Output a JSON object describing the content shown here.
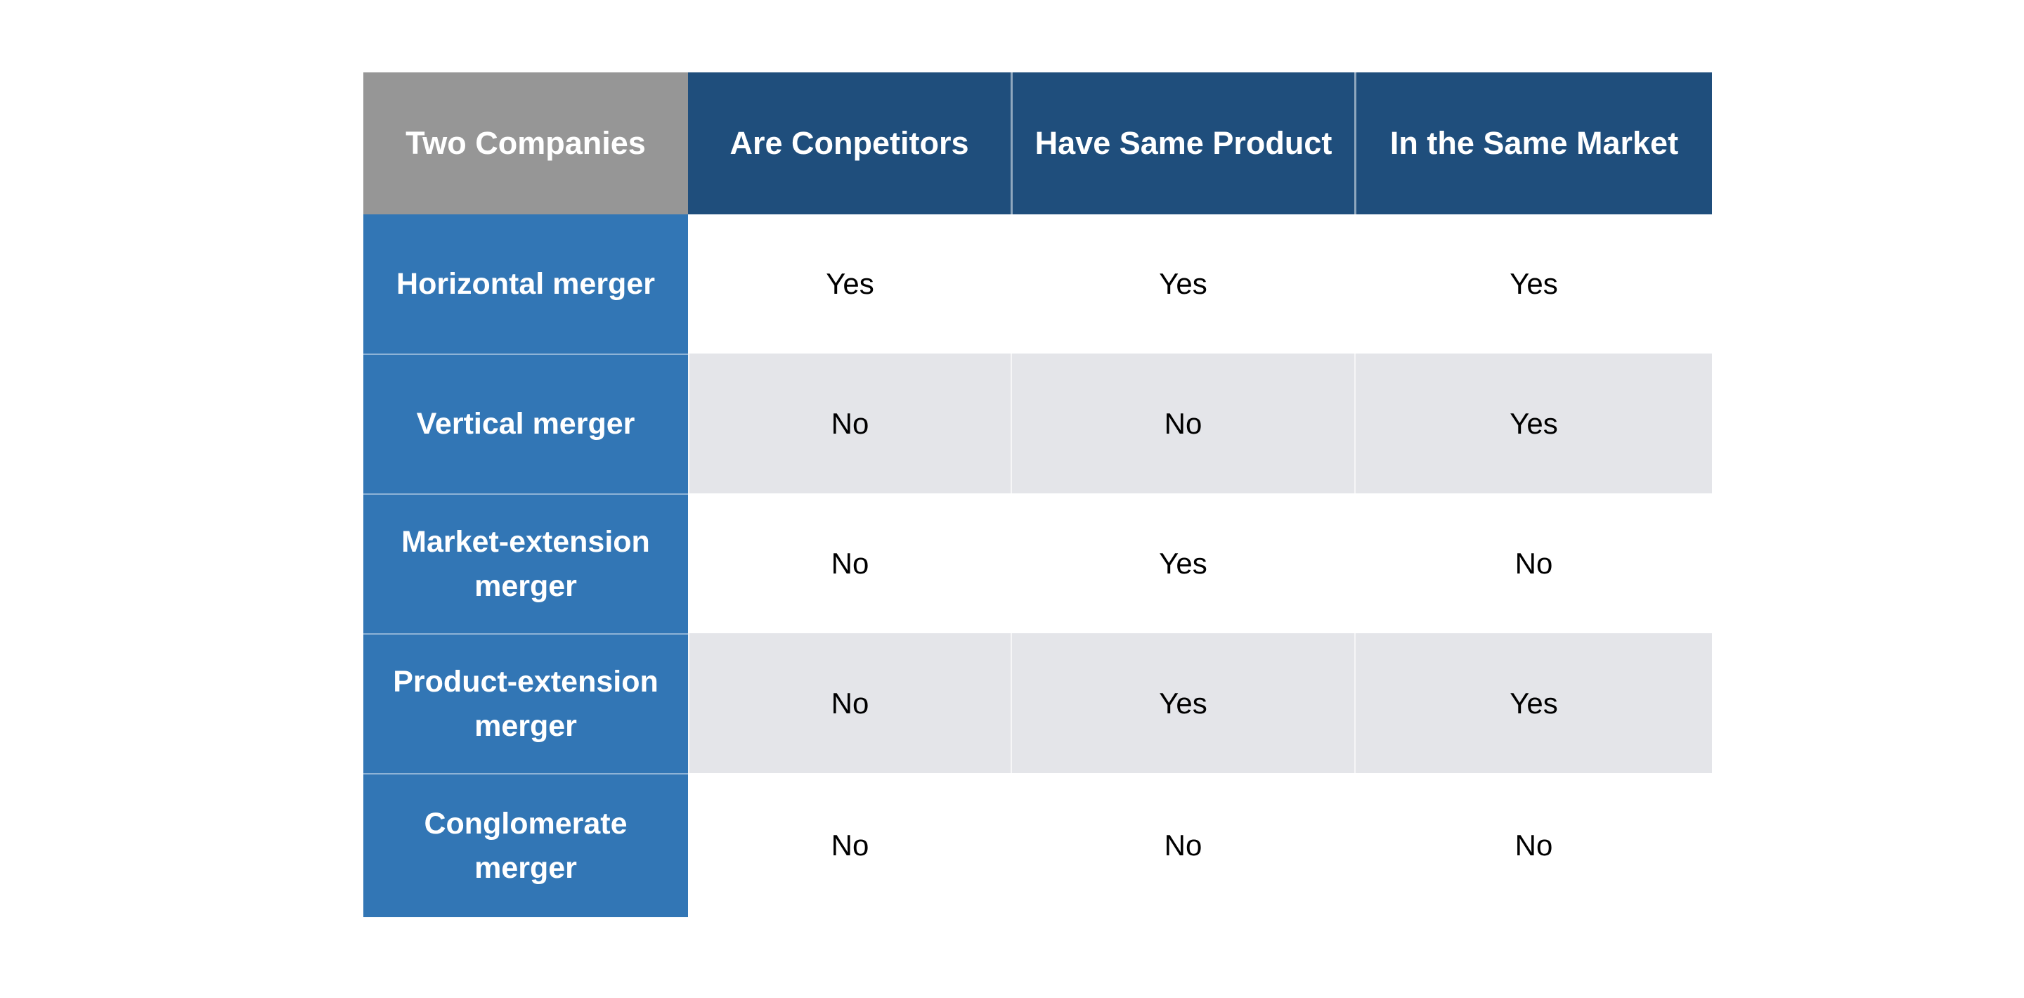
{
  "table": {
    "corner_header": "Two Companies",
    "columns": [
      "Are Conpetitors",
      "Have Same Product",
      "In the Same Market"
    ],
    "rows": [
      {
        "label": "Horizontal merger",
        "values": [
          "Yes",
          "Yes",
          "Yes"
        ]
      },
      {
        "label": "Vertical merger",
        "values": [
          "No",
          "No",
          "Yes"
        ]
      },
      {
        "label": "Market-extension merger",
        "values": [
          "No",
          "Yes",
          "No"
        ]
      },
      {
        "label": "Product-extension merger",
        "values": [
          "No",
          "Yes",
          "Yes"
        ]
      },
      {
        "label": "Conglomerate merger",
        "values": [
          "No",
          "No",
          "No"
        ]
      }
    ],
    "colors": {
      "header_background": "#1F4E7C",
      "corner_background": "#969696",
      "row_header_background": "#3276B5",
      "stripe_background": "#E4E5E9",
      "plain_row_background": "#ffffff",
      "header_text": "#ffffff",
      "cell_text": "#000000"
    }
  },
  "chart_data": {
    "type": "table",
    "title": "",
    "corner_header": "Two Companies",
    "columns": [
      "Are Conpetitors",
      "Have Same Product",
      "In the Same Market"
    ],
    "row_labels": [
      "Horizontal merger",
      "Vertical merger",
      "Market-extension merger",
      "Product-extension merger",
      "Conglomerate merger"
    ],
    "cells": [
      [
        "Yes",
        "Yes",
        "Yes"
      ],
      [
        "No",
        "No",
        "Yes"
      ],
      [
        "No",
        "Yes",
        "No"
      ],
      [
        "No",
        "Yes",
        "Yes"
      ],
      [
        "No",
        "No",
        "No"
      ]
    ],
    "layout_hints": {
      "striped_rows": true,
      "stripe_pattern": "odd data rows white, even data rows light gray",
      "row_header_column": "blue",
      "header_row": "dark blue with gray corner cell"
    }
  }
}
